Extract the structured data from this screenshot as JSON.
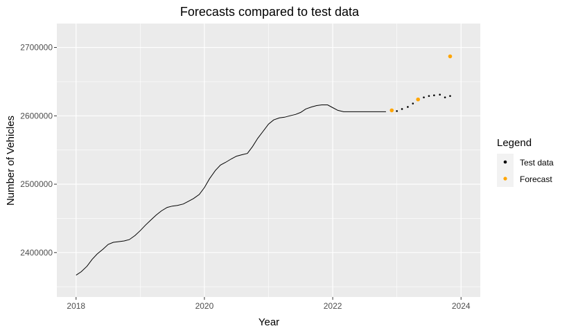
{
  "chart_data": {
    "type": "line",
    "title": "Forecasts compared to test data",
    "xlabel": "Year",
    "ylabel": "Number of Vehicles",
    "xlim": [
      2017.7,
      2024.3
    ],
    "ylim": [
      2335000,
      2735000
    ],
    "x_ticks": [
      2018,
      2020,
      2022,
      2024
    ],
    "x_tick_labels": [
      "2018",
      "2020",
      "2022",
      "2024"
    ],
    "y_ticks": [
      2400000,
      2500000,
      2600000,
      2700000
    ],
    "y_tick_labels": [
      "2400000",
      "2500000",
      "2600000",
      "2700000"
    ],
    "grid": true,
    "legend_position": "right",
    "legend_title": "Legend",
    "colors": {
      "panel": "#ebebeb",
      "grid": "#ffffff",
      "train": "#000000",
      "test": "#000000",
      "forecast": "#ffa500"
    },
    "series": [
      {
        "kind": "line",
        "x": [
          2018.0,
          2018.08,
          2018.17,
          2018.25,
          2018.33,
          2018.42,
          2018.5,
          2018.58,
          2018.67,
          2018.75,
          2018.83,
          2018.92,
          2019.0,
          2019.08,
          2019.17,
          2019.25,
          2019.33,
          2019.42,
          2019.5,
          2019.58,
          2019.67,
          2019.75,
          2019.83,
          2019.92,
          2020.0,
          2020.08,
          2020.17,
          2020.25,
          2020.33,
          2020.42,
          2020.5,
          2020.58,
          2020.67,
          2020.75,
          2020.83,
          2020.92,
          2021.0,
          2021.08,
          2021.17,
          2021.25,
          2021.33,
          2021.42,
          2021.5,
          2021.58,
          2021.67,
          2021.75,
          2021.83,
          2021.92,
          2022.0,
          2022.08,
          2022.17,
          2022.25,
          2022.33,
          2022.42,
          2022.5,
          2022.58,
          2022.67,
          2022.75,
          2022.83
        ],
        "y": [
          2367000,
          2372000,
          2380000,
          2390000,
          2398000,
          2405000,
          2412000,
          2415000,
          2416000,
          2417000,
          2419000,
          2425000,
          2432000,
          2440000,
          2448000,
          2455000,
          2461000,
          2466000,
          2468000,
          2469000,
          2471000,
          2475000,
          2479000,
          2485000,
          2495000,
          2508000,
          2520000,
          2528000,
          2532000,
          2537000,
          2541000,
          2543000,
          2545000,
          2555000,
          2567000,
          2578000,
          2588000,
          2594000,
          2597000,
          2598000,
          2600000,
          2602000,
          2605000,
          2610000,
          2613000,
          2615000,
          2616000,
          2616000,
          2612000,
          2608000,
          2606000,
          2606000,
          2606000,
          2606000,
          2606000,
          2606000,
          2606000,
          2606000,
          2606000
        ]
      },
      {
        "name": "Test data",
        "kind": "points",
        "x": [
          2022.92,
          2023.0,
          2023.08,
          2023.17,
          2023.25,
          2023.33,
          2023.42,
          2023.5,
          2023.58,
          2023.67,
          2023.75,
          2023.83
        ],
        "y": [
          2607000,
          2607000,
          2610000,
          2613000,
          2618000,
          2623000,
          2627000,
          2629000,
          2630000,
          2631000,
          2627000,
          2629000
        ]
      },
      {
        "name": "Forecast",
        "kind": "points",
        "x": [
          2022.92,
          2023.33,
          2023.83
        ],
        "y": [
          2608000,
          2624000,
          2687000
        ]
      }
    ]
  }
}
